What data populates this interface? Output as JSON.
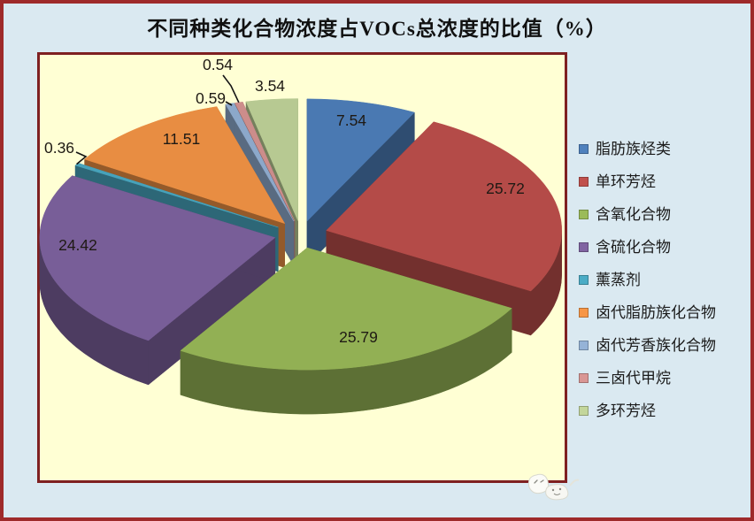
{
  "colors": {
    "background": "#DAE9F1",
    "outer_border": "#9E2A2A",
    "plot_background": "#FFFFD4",
    "plot_border": "#7E2021",
    "title_text": "#111111",
    "legend_text": "#1A1A1A",
    "value_label_text": "#1F1A14"
  },
  "chart_data": {
    "type": "pie",
    "style": "3d-exploded",
    "title": "不同种类化合物浓度占VOCs总浓度的比值（%）",
    "unit": "%",
    "categories": [
      "脂肪族烃类",
      "单环芳烃",
      "含氧化合物",
      "含硫化合物",
      "薰蒸剂",
      "卤代脂肪族化合物",
      "卤代芳香族化合物",
      "三卤代甲烷",
      "多环芳烃"
    ],
    "values": [
      7.54,
      25.72,
      25.79,
      24.42,
      0.36,
      11.51,
      0.59,
      0.54,
      3.54
    ],
    "colors": [
      "#4F81BD",
      "#C0504D",
      "#9BBB59",
      "#8064A2",
      "#4BACC6",
      "#F79646",
      "#95B3D7",
      "#D99694",
      "#C3D69B"
    ],
    "legend_position": "right",
    "start_angle_deg": 0,
    "direction": "clockwise",
    "data_labels": "value",
    "grid": "off"
  },
  "watermark": {
    "description": "small white cloud doodles at plot bottom-right corner"
  }
}
